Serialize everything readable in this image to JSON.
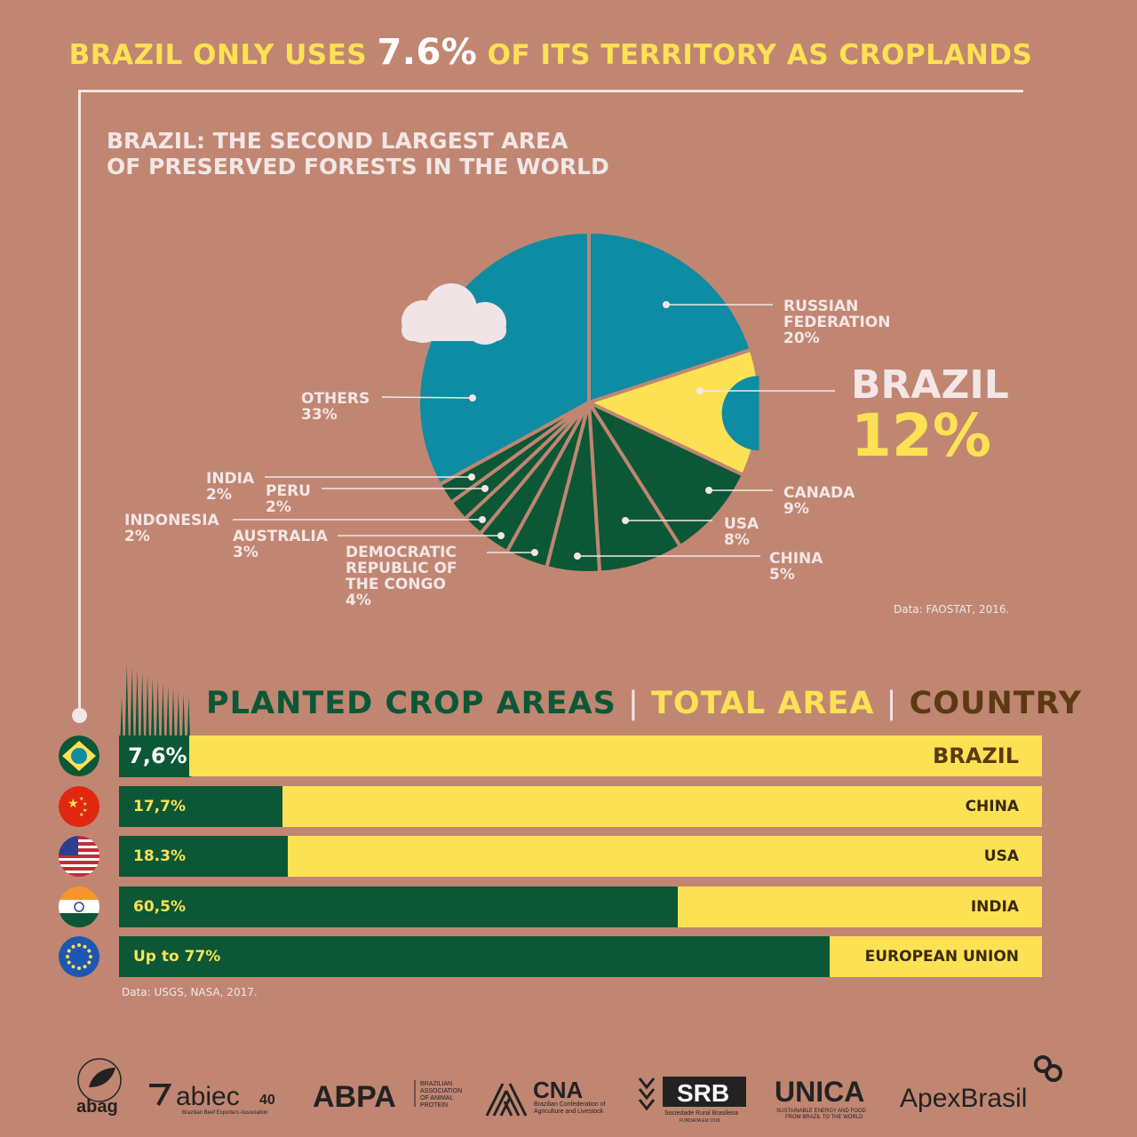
{
  "headline": {
    "before": "BRAZIL ONLY USES ",
    "value": "7.6%",
    "after": " OF ITS TERRITORY AS CROPLANDS"
  },
  "forest_title": {
    "line1": "BRAZIL: THE SECOND LARGEST AREA",
    "line2": "OF PRESERVED FORESTS IN THE WORLD"
  },
  "forest_source": "Data: FAOSTAT, 2016.",
  "labels": {
    "russia": {
      "name1": "RUSSIAN",
      "name2": "FEDERATION",
      "pct": "20%"
    },
    "brazil": {
      "name": "BRAZIL",
      "pct": "12%"
    },
    "canada": {
      "name": "CANADA",
      "pct": "9%"
    },
    "usa": {
      "name": "USA",
      "pct": "8%"
    },
    "china": {
      "name": "CHINA",
      "pct": "5%"
    },
    "drc": {
      "name1": "DEMOCRATIC",
      "name2": "REPUBLIC OF",
      "name3": "THE CONGO",
      "pct": "4%"
    },
    "australia": {
      "name": "AUSTRALIA",
      "pct": "3%"
    },
    "indonesia": {
      "name": "INDONESIA",
      "pct": "2%"
    },
    "peru": {
      "name": "PERU",
      "pct": "2%"
    },
    "india": {
      "name": "INDIA",
      "pct": "2%"
    },
    "others": {
      "name": "OTHERS",
      "pct": "33%"
    }
  },
  "bars_header": {
    "planted": "PLANTED CROP AREAS",
    "sep": "|",
    "total": "TOTAL AREA",
    "country": "COUNTRY"
  },
  "bars_source": "Data: USGS, NASA, 2017.",
  "colors": {
    "background": "#c08672",
    "forest_green": "#0b5736",
    "teal": "#0e8ca3",
    "yellow": "#fde154",
    "light": "#f3e6e6",
    "brown": "#5b3a12"
  },
  "chart_data": [
    {
      "type": "pie",
      "title": "BRAZIL: THE SECOND LARGEST AREA OF PRESERVED FORESTS IN THE WORLD",
      "categories": [
        "RUSSIAN FEDERATION",
        "BRAZIL",
        "CANADA",
        "USA",
        "CHINA",
        "DEMOCRATIC REPUBLIC OF THE CONGO",
        "AUSTRALIA",
        "INDONESIA",
        "PERU",
        "INDIA",
        "OTHERS"
      ],
      "values": [
        20,
        12,
        9,
        8,
        5,
        4,
        3,
        2,
        2,
        2,
        33
      ],
      "colors": [
        "#0e8ca3",
        "#fde154",
        "#0b5736",
        "#0b5736",
        "#0b5736",
        "#0b5736",
        "#0b5736",
        "#0b5736",
        "#0b5736",
        "#0b5736",
        "#0e8ca3"
      ],
      "unit": "%"
    },
    {
      "type": "bar",
      "title": "PLANTED CROP AREAS | TOTAL AREA | COUNTRY",
      "categories": [
        "BRAZIL",
        "CHINA",
        "USA",
        "INDIA",
        "EUROPEAN UNION"
      ],
      "values": [
        7.6,
        17.7,
        18.3,
        60.5,
        77
      ],
      "value_labels": [
        "7,6%",
        "17,7%",
        "18.3%",
        "60,5%",
        "Up to 77%"
      ],
      "ylim": [
        0,
        100
      ],
      "unit": "%"
    }
  ],
  "logos": [
    {
      "name": "abag"
    },
    {
      "name": "abiec",
      "suffix": "40",
      "sub": "Brazilian Beef Exporters Association"
    },
    {
      "name": "ABPA",
      "sub1": "BRAZILIAN",
      "sub2": "ASSOCIATION",
      "sub3": "OF ANIMAL",
      "sub4": "PROTEIN"
    },
    {
      "name": "CNA",
      "sub1": "Brazilian Confederation of",
      "sub2": "Agriculture and Livestock"
    },
    {
      "name": "SRB",
      "sub1": "Sociedade Rural Brasileira",
      "sub2": "FUNDADA EM 1919"
    },
    {
      "name": "UNICA",
      "sub1": "SUSTAINABLE ENERGY AND FOOD",
      "sub2": "FROM BRAZIL TO THE WORLD"
    },
    {
      "name": "ApexBrasil"
    }
  ]
}
